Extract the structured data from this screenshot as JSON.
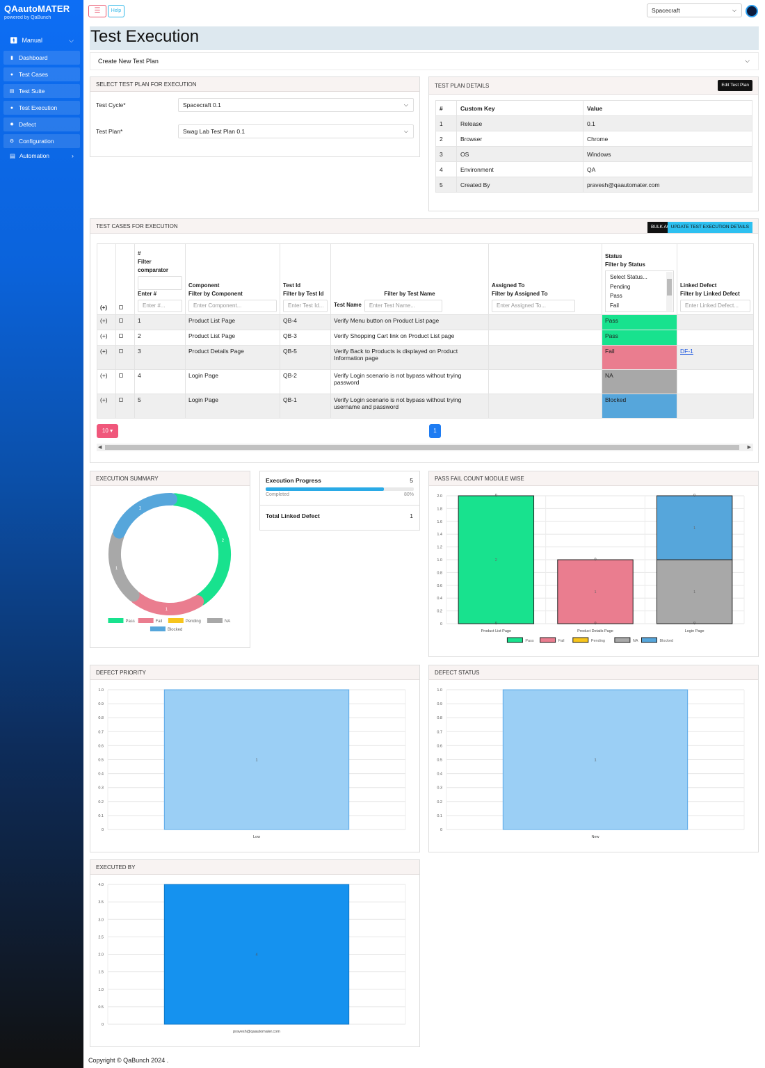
{
  "sidebar": {
    "brand": "QAautoMATER",
    "brand_sub": "powered by QaBunch",
    "manual": "Manual",
    "items": [
      {
        "label": "Dashboard",
        "icon": "chart-icon"
      },
      {
        "label": "Test Cases",
        "icon": "gear-circle-icon"
      },
      {
        "label": "Test Suite",
        "icon": "suite-icon"
      },
      {
        "label": "Test Execution",
        "icon": "bulb-icon"
      },
      {
        "label": "Defect",
        "icon": "bug-icon"
      },
      {
        "label": "Configuration",
        "icon": "gear-icon"
      }
    ],
    "automation": "Automation"
  },
  "topbar": {
    "help": "Help",
    "project": "Spacecraft"
  },
  "page": {
    "title": "Test Execution",
    "create_plan": "Create New Test Plan"
  },
  "select_plan": {
    "header": "SELECT TEST PLAN FOR EXECUTION",
    "cycle_label": "Test Cycle*",
    "cycle_value": "Spacecraft 0.1",
    "plan_label": "Test Plan*",
    "plan_value": "Swag Lab Test Plan 0.1"
  },
  "plan_details": {
    "header": "TEST PLAN DETAILS",
    "edit_button": "Edit Test Plan",
    "columns": [
      "#",
      "Custom Key",
      "Value"
    ],
    "rows": [
      [
        "1",
        "Release",
        "0.1"
      ],
      [
        "2",
        "Browser",
        "Chrome"
      ],
      [
        "3",
        "OS",
        "Windows"
      ],
      [
        "4",
        "Environment",
        "QA"
      ],
      [
        "5",
        "Created By",
        "pravesh@qaautomater.com"
      ]
    ]
  },
  "exec_table": {
    "header": "TEST CASES FOR EXECUTION",
    "bulk_button": "Bulk Action",
    "update_button": "Update Test Execution Details",
    "expand_all": "(+)",
    "col_num": "#",
    "col_num_filter": "Filter comparator",
    "col_num_enter": "Enter #",
    "col_num_placeholder": "Enter #...",
    "col_component": "Component",
    "col_component_filter": "Filter by Component",
    "col_component_placeholder": "Enter Component...",
    "col_testid": "Test Id",
    "col_testid_filter": "Filter by Test Id",
    "col_testid_placeholder": "Enter Test Id...",
    "col_testname_filter": "Filter by Test Name",
    "col_testname": "Test Name",
    "col_testname_placeholder": "Enter Test Name...",
    "col_assigned": "Assigned To",
    "col_assigned_filter": "Filter by Assigned To",
    "col_assigned_placeholder": "Enter Assigned To...",
    "col_status": "Status",
    "col_status_filter": "Filter by Status",
    "status_options": [
      "Select Status...",
      "Pending",
      "Pass",
      "Fail"
    ],
    "col_defect": "Linked Defect",
    "col_defect_filter": "Filter by Linked Defect",
    "col_defect_placeholder": "Enter Linked Defect...",
    "rows": [
      {
        "expand": "(+)",
        "num": "1",
        "component": "Product List Page",
        "test_id": "QB-4",
        "test_name": "Verify Menu button on Product List page",
        "assigned": "",
        "status": "Pass",
        "defect": ""
      },
      {
        "expand": "(+)",
        "num": "2",
        "component": "Product List Page",
        "test_id": "QB-3",
        "test_name": "Verify Shopping Cart link on Product List page",
        "assigned": "",
        "status": "Pass",
        "defect": ""
      },
      {
        "expand": "(+)",
        "num": "3",
        "component": "Product Details Page",
        "test_id": "QB-5",
        "test_name": "Verify Back to Products is displayed on Product Information page",
        "assigned": "",
        "status": "Fail",
        "defect": "DF-1"
      },
      {
        "expand": "(+)",
        "num": "4",
        "component": "Login Page",
        "test_id": "QB-2",
        "test_name": "Verify Login scenario is not bypass without trying password",
        "assigned": "",
        "status": "NA",
        "defect": ""
      },
      {
        "expand": "(+)",
        "num": "5",
        "component": "Login Page",
        "test_id": "QB-1",
        "test_name": "Verify Login scenario is not bypass without trying username and password",
        "assigned": "",
        "status": "Blocked",
        "defect": ""
      }
    ],
    "page_size": "10",
    "page": "1"
  },
  "progress": {
    "title": "Execution Progress",
    "count": "5",
    "completed_label": "Completed",
    "completed_pct": "80%",
    "completed_fraction": 0.8,
    "linked_title": "Total Linked Defect",
    "linked_count": "1"
  },
  "colors": {
    "pass": "#18e28e",
    "fail": "#ea7d8f",
    "pending": "#f7c51c",
    "na": "#a8a8a8",
    "blocked": "#56a6db"
  },
  "chart_data": [
    {
      "panel": "EXECUTION SUMMARY",
      "type": "pie",
      "labels": [
        "Pass",
        "Fail",
        "Pending",
        "NA",
        "Blocked"
      ],
      "values": [
        2,
        1,
        0,
        1,
        1
      ],
      "legend": "bottom"
    },
    {
      "panel": "PASS FAIL COUNT MODULE WISE",
      "type": "bar",
      "stacked": true,
      "categories": [
        "Product List Page",
        "Product Details Page",
        "Login Page"
      ],
      "series": [
        {
          "name": "Pass",
          "values": [
            2,
            0,
            0
          ]
        },
        {
          "name": "Fail",
          "values": [
            0,
            1,
            0
          ]
        },
        {
          "name": "Pending",
          "values": [
            0,
            0,
            0
          ]
        },
        {
          "name": "NA",
          "values": [
            0,
            0,
            1
          ]
        },
        {
          "name": "Blocked",
          "values": [
            0,
            0,
            1
          ]
        }
      ],
      "ylim": [
        0,
        2.0
      ],
      "yticks": [
        "0",
        "0.2",
        "0.4",
        "0.6",
        "0.8",
        "1.0",
        "1.2",
        "1.4",
        "1.6",
        "1.8",
        "2.0"
      ],
      "grid": true,
      "legend": "bottom"
    },
    {
      "panel": "DEFECT PRIORITY",
      "type": "bar",
      "categories": [
        "Low"
      ],
      "values": [
        1
      ],
      "ylim": [
        0,
        1.0
      ],
      "yticks": [
        "0",
        "0.1",
        "0.2",
        "0.3",
        "0.4",
        "0.5",
        "0.6",
        "0.7",
        "0.8",
        "0.9",
        "1.0"
      ],
      "grid": true
    },
    {
      "panel": "DEFECT STATUS",
      "type": "bar",
      "categories": [
        "New"
      ],
      "values": [
        1
      ],
      "ylim": [
        0,
        1.0
      ],
      "yticks": [
        "0",
        "0.1",
        "0.2",
        "0.3",
        "0.4",
        "0.5",
        "0.6",
        "0.7",
        "0.8",
        "0.9",
        "1.0"
      ],
      "grid": true
    },
    {
      "panel": "EXECUTED BY",
      "type": "bar",
      "categories": [
        "pravesh@qaautomater.com"
      ],
      "values": [
        4
      ],
      "ylim": [
        0,
        4.0
      ],
      "yticks": [
        "0",
        "0.5",
        "1.0",
        "1.5",
        "2.0",
        "2.5",
        "3.0",
        "3.5",
        "4.0"
      ],
      "grid": true
    }
  ],
  "footer": "Copyright © QaBunch 2024 ."
}
